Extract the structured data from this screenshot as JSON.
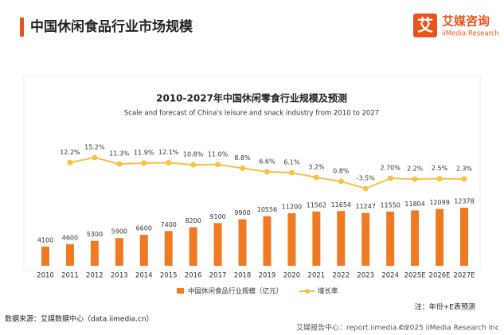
{
  "header": {
    "title": "中国休闲食品行业市场规模",
    "logo_name": "艾媒咨询",
    "logo_sub": "iiMedia Research",
    "logo_icon": "艾"
  },
  "chart_data": {
    "type": "bar",
    "title": "2010-2027年中国休闲零食行业规模及预测",
    "subtitle": "Scale and forecast of China's leisure and snack industry from 2010 to 2027",
    "categories": [
      "2010",
      "2011",
      "2012",
      "2013",
      "2014",
      "2015",
      "2016",
      "2017",
      "2018",
      "2019",
      "2020",
      "2021",
      "2022",
      "2023",
      "2024",
      "2025E",
      "2026E",
      "2027E"
    ],
    "series": [
      {
        "name": "中国休闲食品行业规模（亿元）",
        "type": "bar",
        "color": "#f07a22",
        "values": [
          4100,
          4600,
          5300,
          5900,
          6600,
          7400,
          8200,
          9100,
          9900,
          10556,
          11200,
          11562,
          11654,
          11247,
          11550,
          11804,
          12099,
          12378
        ]
      },
      {
        "name": "增长率",
        "type": "line",
        "color": "#f5c242",
        "values": [
          null,
          12.2,
          15.2,
          11.3,
          11.9,
          12.1,
          10.8,
          11.0,
          8.8,
          6.6,
          6.1,
          3.2,
          0.8,
          -3.5,
          2.7,
          2.2,
          2.5,
          2.3
        ],
        "value_labels": [
          null,
          "12.2%",
          "15.2%",
          "11.3%",
          "11.9%",
          "12.1%",
          "10.8%",
          "11.0%",
          "8.8%",
          "6.6%",
          "6.1%",
          "3.2%",
          "0.8%",
          "-3.5%",
          "2.70%",
          "2.2%",
          "2.5%",
          "2.3%"
        ]
      }
    ],
    "legend": "bottom"
  },
  "footer": {
    "source": "数据来源：艾媒数据中心（data.iimedia.cn）",
    "note": "注：年份+E表预测",
    "report": "艾媒报告中心：report.iimedia.cn",
    "copyright": "©2025  iiMedia Research  Inc"
  }
}
